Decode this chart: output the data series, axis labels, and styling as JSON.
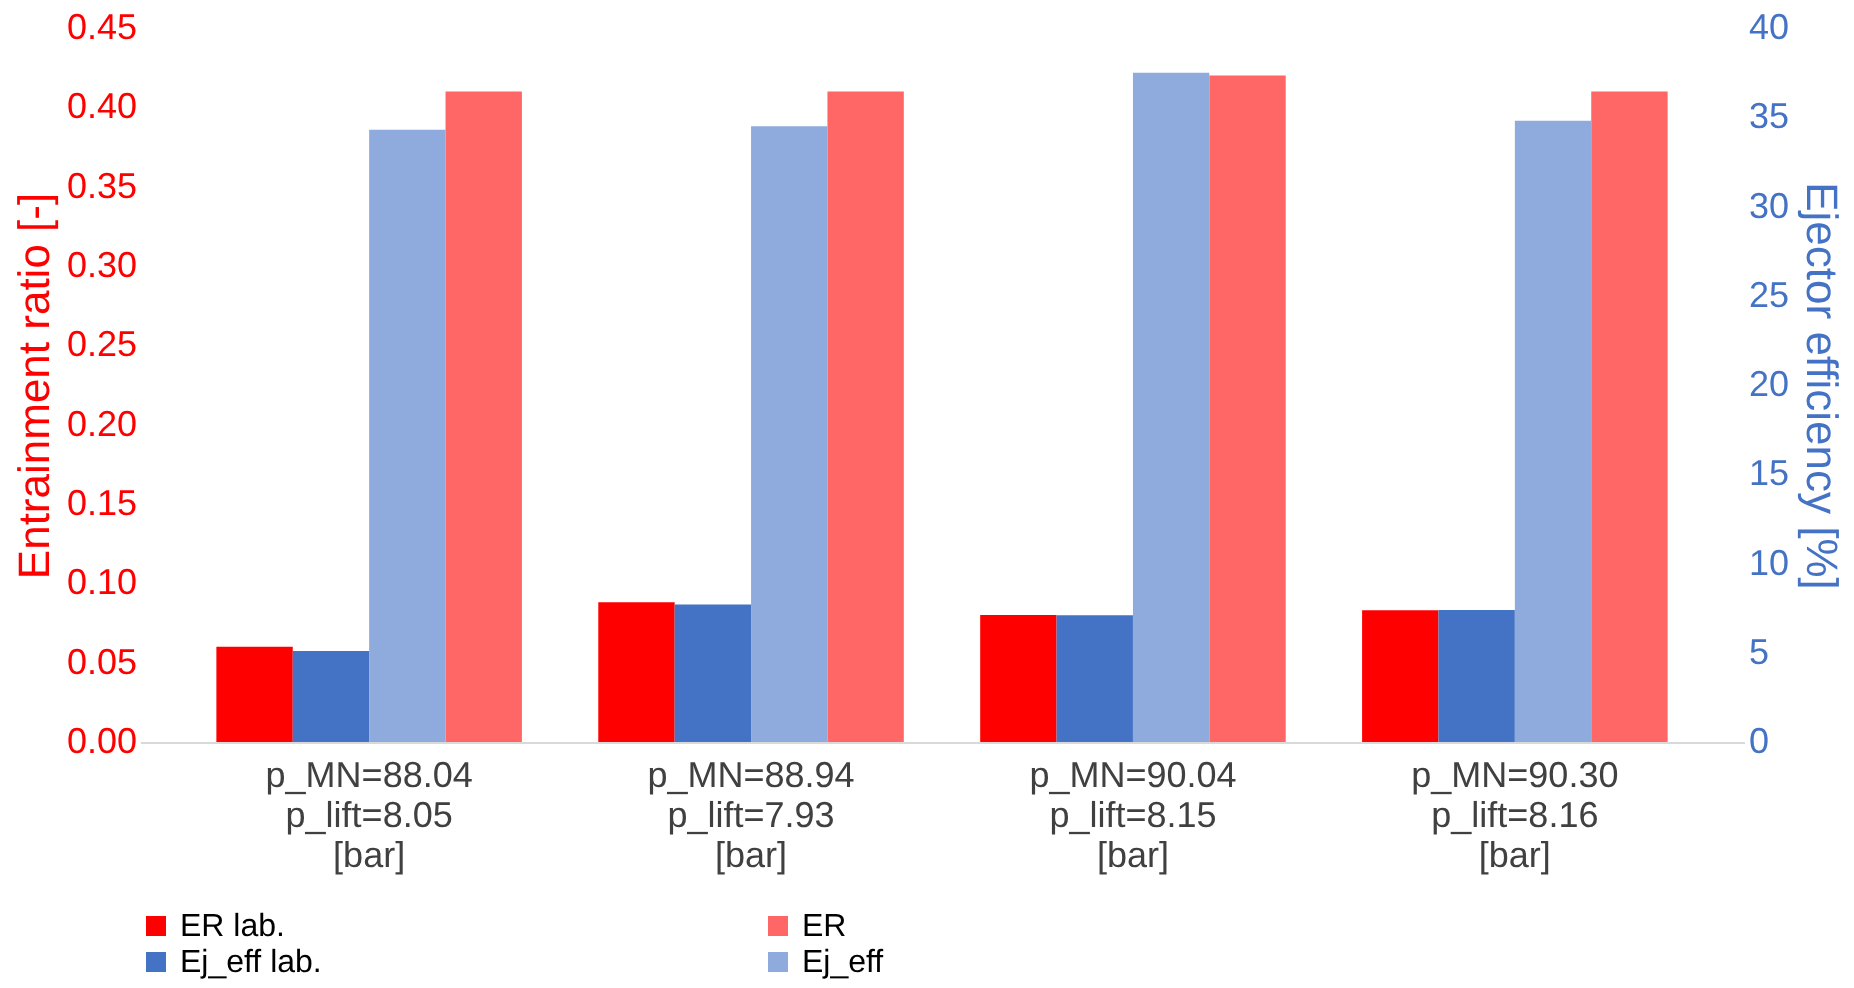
{
  "chart_data": {
    "type": "bar",
    "categories": [
      "p_MN=88.04\np_lift=8.05\n[bar]",
      "p_MN=88.94\np_lift=7.93\n[bar]",
      "p_MN=90.04\np_lift=8.15\n[bar]",
      "p_MN=90.30\np_lift=8.16\n[bar]"
    ],
    "ylabel": "Entrainment ratio [-]",
    "y2label": "Ejector efficiency [%]",
    "ylim": [
      0,
      0.45
    ],
    "yticks": [
      {
        "value": 0,
        "label": "0.00"
      },
      {
        "value": 0.05,
        "label": "0.05"
      },
      {
        "value": 0.1,
        "label": "0.10"
      },
      {
        "value": 0.15,
        "label": "0.15"
      },
      {
        "value": 0.2,
        "label": "0.20"
      },
      {
        "value": 0.25,
        "label": "0.25"
      },
      {
        "value": 0.3,
        "label": "0.30"
      },
      {
        "value": 0.35,
        "label": "0.35"
      },
      {
        "value": 0.4,
        "label": "0.40"
      },
      {
        "value": 0.45,
        "label": "0.45"
      }
    ],
    "y2lim": [
      0,
      40
    ],
    "y2ticks": [
      0,
      5,
      10,
      15,
      20,
      25,
      30,
      35,
      40
    ],
    "series": [
      {
        "name": "ER lab.",
        "color": "#ff0000",
        "values": [
          0.06,
          0.088,
          0.08,
          0.083
        ]
      },
      {
        "name": "Ej_eff lab.",
        "color": "#4472c4",
        "values": [
          5.1,
          7.7,
          7.1,
          7.4
        ],
        "axis": "y2"
      },
      {
        "name": "Ej_eff",
        "color": "#8faadc",
        "values": [
          34.3,
          34.5,
          37.5,
          34.8
        ],
        "axis": "y2"
      },
      {
        "name": "ER",
        "color": "#ff6666",
        "values": [
          0.41,
          0.41,
          0.42,
          0.41
        ]
      }
    ],
    "legend": "bottom",
    "grid": false
  }
}
